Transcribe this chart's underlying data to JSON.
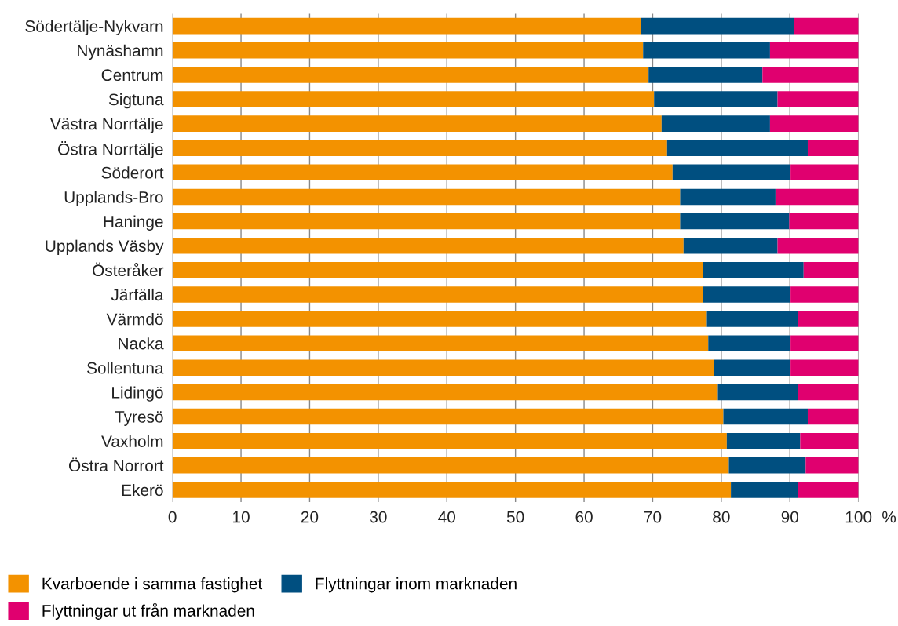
{
  "chart_data": {
    "type": "bar",
    "orientation": "horizontal",
    "stacked": true,
    "categories": [
      "Södertälje-Nykvarn",
      "Nynäshamn",
      "Centrum",
      "Sigtuna",
      "Västra Norrtälje",
      "Östra Norrtälje",
      "Söderort",
      "Upplands-Bro",
      "Haninge",
      "Upplands Väsby",
      "Österåker",
      "Järfälla",
      "Värmdö",
      "Nacka",
      "Sollentuna",
      "Lidingö",
      "Tyresö",
      "Vaxholm",
      "Östra Norrort",
      "Ekerö"
    ],
    "series": [
      {
        "name": "Kvarboende i samma fastighet",
        "color": "#f39200",
        "values": [
          68.3,
          68.6,
          69.4,
          70.2,
          71.3,
          72.1,
          72.9,
          74.0,
          74.0,
          74.5,
          77.3,
          77.3,
          77.9,
          78.1,
          78.9,
          79.5,
          80.3,
          80.8,
          81.1,
          81.4
        ]
      },
      {
        "name": "Flyttningar inom marknaden",
        "color": "#004f80",
        "values": [
          22.3,
          18.5,
          16.6,
          18.0,
          15.8,
          20.5,
          17.2,
          13.9,
          15.9,
          13.7,
          14.7,
          12.8,
          13.3,
          12.0,
          11.2,
          11.7,
          12.3,
          10.7,
          11.2,
          9.8
        ]
      },
      {
        "name": "Flyttningar ut från marknaden",
        "color": "#e0006f",
        "values": [
          9.4,
          12.9,
          14.0,
          11.8,
          12.9,
          7.4,
          9.9,
          12.1,
          10.1,
          11.8,
          8.0,
          9.9,
          8.8,
          9.9,
          9.9,
          8.8,
          7.4,
          8.5,
          7.7,
          8.8
        ]
      }
    ],
    "xlabel": "%",
    "xlim": [
      0,
      100
    ],
    "xticks": [
      0,
      10,
      20,
      30,
      40,
      50,
      60,
      70,
      80,
      90,
      100
    ],
    "grid": "x",
    "legend": "bottom"
  }
}
